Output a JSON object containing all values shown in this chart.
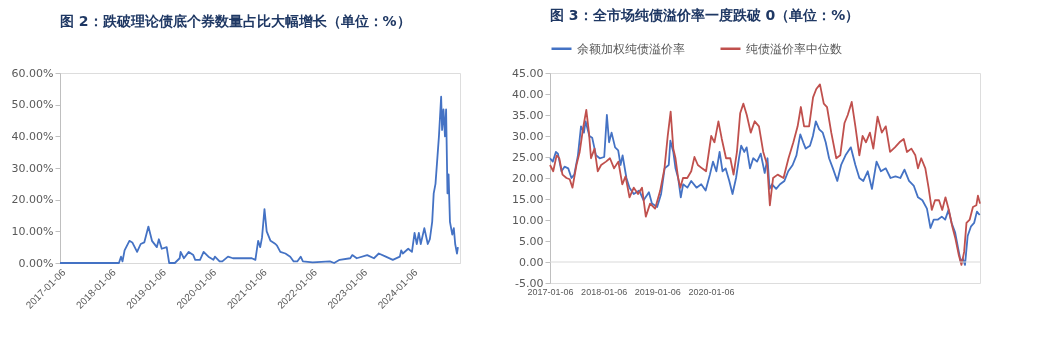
{
  "chart_data": [
    {
      "type": "line",
      "title": "图 2：跌破理论债底个券数量占比大幅增长（单位：%）",
      "xlim": [
        "2017-01-06",
        "2024-12-20"
      ],
      "xticks": [
        "2017-01-06",
        "2018-01-06",
        "2019-01-06",
        "2020-01-06",
        "2021-01-06",
        "2022-01-06",
        "2023-01-06",
        "2024-01-06"
      ],
      "ylim": [
        0,
        60
      ],
      "yticks": [
        {
          "value": 0,
          "label": "0.00%"
        },
        {
          "value": 10,
          "label": "10.00%"
        },
        {
          "value": 20,
          "label": "20.00%"
        },
        {
          "value": 30,
          "label": "30.00%"
        },
        {
          "value": 40,
          "label": "40.00%"
        },
        {
          "value": 50,
          "label": "50.00%"
        },
        {
          "value": 60,
          "label": "60.00%"
        }
      ],
      "grid": false,
      "legend": false,
      "series": [
        {
          "color": "#4472c4",
          "x": [
            "2017-01-06",
            "2018-03-10",
            "2018-03-25",
            "2018-04-05",
            "2018-04-20",
            "2018-05-25",
            "2018-06-15",
            "2018-07-20",
            "2018-08-15",
            "2018-09-10",
            "2018-10-10",
            "2018-11-05",
            "2018-12-10",
            "2018-12-25",
            "2019-01-15",
            "2019-02-20",
            "2019-02-25",
            "2019-03-10",
            "2019-04-20",
            "2019-05-25",
            "2019-06-01",
            "2019-06-25",
            "2019-07-30",
            "2019-09-01",
            "2019-09-15",
            "2019-10-20",
            "2019-11-15",
            "2019-12-20",
            "2020-01-25",
            "2020-02-05",
            "2020-03-10",
            "2020-03-30",
            "2020-05-10",
            "2020-06-15",
            "2020-09-10",
            "2020-10-30",
            "2020-11-25",
            "2020-12-15",
            "2020-12-30",
            "2021-01-12",
            "2021-01-30",
            "2021-02-15",
            "2021-03-15",
            "2021-04-20",
            "2021-05-01",
            "2021-05-25",
            "2021-07-01",
            "2021-08-05",
            "2021-08-30",
            "2021-09-25",
            "2021-10-20",
            "2021-11-05",
            "2022-01-15",
            "2022-05-20",
            "2022-06-20",
            "2022-07-30",
            "2022-10-15",
            "2022-10-30",
            "2022-12-01",
            "2023-02-15",
            "2023-04-05",
            "2023-05-10",
            "2023-06-30",
            "2023-08-20",
            "2023-10-10",
            "2023-10-20",
            "2023-11-01",
            "2023-12-10",
            "2024-01-06",
            "2024-01-25",
            "2024-02-10",
            "2024-02-25",
            "2024-03-10",
            "2024-04-05",
            "2024-04-30",
            "2024-05-15",
            "2024-06-01",
            "2024-06-12",
            "2024-06-25",
            "2024-07-10",
            "2024-07-20",
            "2024-08-05",
            "2024-08-12",
            "2024-08-22",
            "2024-09-02",
            "2024-09-10",
            "2024-09-20",
            "2024-09-28",
            "2024-10-08",
            "2024-10-25",
            "2024-11-05",
            "2024-11-15",
            "2024-11-28",
            "2024-12-05"
          ],
          "values": [
            0,
            0,
            2,
            0.5,
            4,
            7,
            6.5,
            3.5,
            6,
            6.5,
            11.5,
            7,
            5,
            7.5,
            4.5,
            5,
            3.5,
            0,
            0,
            1.5,
            3.5,
            1.5,
            3.5,
            2.5,
            1,
            1,
            3.5,
            2,
            1,
            2,
            0.5,
            0.5,
            2,
            1.5,
            1.5,
            1.5,
            1,
            7,
            5,
            8,
            17,
            10,
            7,
            6,
            5.5,
            3.5,
            3,
            2,
            0.5,
            0.5,
            2,
            0.5,
            0.2,
            0.5,
            0,
            1,
            1.5,
            2.5,
            1.5,
            2.5,
            1.5,
            3,
            2,
            1,
            2,
            4,
            3,
            4.5,
            3.5,
            9.5,
            6,
            9.5,
            6,
            11,
            6,
            7.5,
            13,
            22,
            25,
            34,
            40,
            52.5,
            42,
            48.5,
            40,
            48.5,
            22,
            28,
            13,
            9,
            11,
            6,
            3,
            5
          ]
        }
      ]
    },
    {
      "type": "line",
      "title": "图 3：全市场纯债溢价率一度跌破 0（单位：%）",
      "xlim": [
        "2017-01-06",
        "2025-01-10"
      ],
      "xticks": [
        "2017-01-06",
        "2018-01-06",
        "2019-01-06",
        "2020-01-06"
      ],
      "ylim": [
        -5,
        45
      ],
      "yticks": [
        {
          "value": -5,
          "label": "-5.00"
        },
        {
          "value": 0,
          "label": "0.00"
        },
        {
          "value": 5,
          "label": "5.00"
        },
        {
          "value": 10,
          "label": "10.00"
        },
        {
          "value": 15,
          "label": "15.00"
        },
        {
          "value": 20,
          "label": "20.00"
        },
        {
          "value": 25,
          "label": "25.00"
        },
        {
          "value": 30,
          "label": "30.00"
        },
        {
          "value": 35,
          "label": "35.00"
        },
        {
          "value": 40,
          "label": "40.00"
        },
        {
          "value": 45,
          "label": "45.00"
        }
      ],
      "grid": false,
      "legend": "top",
      "ref_lines": [
        {
          "axis": "y",
          "value": 0,
          "color": "#d9d9d9"
        }
      ],
      "series": [
        {
          "name": "余额加权纯债溢价率",
          "color": "#4472c4",
          "x": [
            "2017-01-06",
            "2017-01-25",
            "2017-02-15",
            "2017-03-01",
            "2017-03-25",
            "2017-04-15",
            "2017-05-10",
            "2017-06-01",
            "2017-06-20",
            "2017-07-15",
            "2017-08-05",
            "2017-08-25",
            "2017-09-05",
            "2017-10-01",
            "2017-10-20",
            "2017-11-15",
            "2017-12-10",
            "2018-01-10",
            "2018-01-28",
            "2018-02-12",
            "2018-03-01",
            "2018-03-25",
            "2018-04-15",
            "2018-05-01",
            "2018-05-15",
            "2018-06-10",
            "2018-07-01",
            "2018-07-30",
            "2018-09-05",
            "2018-10-05",
            "2018-11-10",
            "2018-12-01",
            "2019-01-05",
            "2019-02-01",
            "2019-02-25",
            "2019-03-25",
            "2019-04-05",
            "2019-04-25",
            "2019-05-10",
            "2019-05-28",
            "2019-06-15",
            "2019-07-01",
            "2019-07-30",
            "2019-08-25",
            "2019-09-30",
            "2019-11-01",
            "2019-12-01",
            "2019-12-30",
            "2020-01-20",
            "2020-02-12",
            "2020-03-05",
            "2020-03-25",
            "2020-04-15",
            "2020-05-10",
            "2020-06-01",
            "2020-06-25",
            "2020-07-15",
            "2020-07-30",
            "2020-08-20",
            "2020-09-05",
            "2020-09-28",
            "2020-10-20",
            "2020-11-15",
            "2020-12-10",
            "2021-01-06",
            "2021-01-25",
            "2021-02-08",
            "2021-02-25",
            "2021-03-25",
            "2021-04-20",
            "2021-05-20",
            "2021-06-15",
            "2021-07-15",
            "2021-08-10",
            "2021-09-05",
            "2021-09-25",
            "2021-10-12",
            "2021-11-10",
            "2021-11-30",
            "2021-12-20",
            "2022-01-12",
            "2022-02-05",
            "2022-02-25",
            "2022-03-20",
            "2022-04-15",
            "2022-05-15",
            "2022-06-10",
            "2022-07-10",
            "2022-08-15",
            "2022-09-15",
            "2022-10-12",
            "2022-11-08",
            "2022-12-08",
            "2023-01-06",
            "2023-02-06",
            "2023-03-08",
            "2023-04-10",
            "2023-05-12",
            "2023-06-15",
            "2023-07-18",
            "2023-08-15",
            "2023-09-15",
            "2023-10-18",
            "2023-11-15",
            "2023-12-15",
            "2024-01-15",
            "2024-02-08",
            "2024-03-01",
            "2024-03-30",
            "2024-04-25",
            "2024-05-18",
            "2024-06-10",
            "2024-07-01",
            "2024-07-25",
            "2024-08-15",
            "2024-09-01",
            "2024-09-15",
            "2024-09-30",
            "2024-10-18",
            "2024-11-10",
            "2024-12-01",
            "2024-12-20",
            "2025-01-08"
          ],
          "values": [
            24.7,
            23.9,
            26.2,
            25.8,
            21.6,
            22.7,
            22.3,
            20,
            20.8,
            25.4,
            32.3,
            30.8,
            33.5,
            30,
            29.6,
            25.4,
            24.7,
            25,
            35,
            28.5,
            30.8,
            27.3,
            26.6,
            23.1,
            25.4,
            20,
            17.7,
            16.2,
            17,
            14.7,
            16.6,
            13.9,
            13.1,
            16.2,
            22.3,
            23.1,
            28.9,
            26.2,
            22.3,
            20,
            15.4,
            18.5,
            17.7,
            19.3,
            17.7,
            18.5,
            17,
            20.8,
            23.9,
            21.6,
            26.2,
            21.6,
            22.3,
            19.3,
            16.2,
            20,
            24.7,
            27.7,
            26.2,
            27.3,
            22.3,
            24.7,
            23.9,
            25.8,
            21.2,
            24.7,
            17.4,
            18.5,
            17.4,
            18.5,
            19.3,
            21.6,
            23.1,
            25.4,
            30.4,
            28.5,
            27,
            27.7,
            30,
            33.5,
            31.6,
            30.8,
            28.5,
            24.7,
            22.3,
            19.3,
            23.1,
            25.4,
            27.3,
            23.1,
            20,
            19.3,
            21.6,
            17.4,
            23.9,
            21.6,
            22.3,
            20,
            20.4,
            20,
            22,
            19.3,
            18.1,
            15.4,
            14.7,
            12.7,
            8.1,
            10.1,
            10.1,
            10.8,
            10.1,
            12.4,
            9.3,
            7,
            3.1,
            0.1,
            0.8,
            -0.7,
            6.2,
            8.5,
            9.3,
            12,
            11.2
          ]
        },
        {
          "name": "纯债溢价率中位数",
          "color": "#c0504d",
          "x": [
            "2017-01-06",
            "2017-01-28",
            "2017-02-20",
            "2017-03-10",
            "2017-04-01",
            "2017-04-28",
            "2017-05-20",
            "2017-06-08",
            "2017-07-05",
            "2017-07-27",
            "2017-08-18",
            "2017-09-10",
            "2017-09-28",
            "2017-10-12",
            "2017-11-05",
            "2017-11-27",
            "2017-12-20",
            "2018-01-22",
            "2018-02-18",
            "2018-03-18",
            "2018-04-16",
            "2018-05-13",
            "2018-06-04",
            "2018-07-01",
            "2018-07-30",
            "2018-08-28",
            "2018-09-24",
            "2018-10-20",
            "2018-11-18",
            "2018-12-22",
            "2019-01-26",
            "2019-02-24",
            "2019-03-18",
            "2019-04-07",
            "2019-04-25",
            "2019-05-10",
            "2019-05-28",
            "2019-06-12",
            "2019-06-30",
            "2019-07-29",
            "2019-08-25",
            "2019-09-16",
            "2019-10-09",
            "2019-11-07",
            "2019-12-04",
            "2020-01-08",
            "2020-01-30",
            "2020-02-26",
            "2020-03-20",
            "2020-04-18",
            "2020-05-17",
            "2020-06-08",
            "2020-07-01",
            "2020-07-23",
            "2020-08-14",
            "2020-09-06",
            "2020-10-03",
            "2020-10-30",
            "2020-11-28",
            "2020-12-27",
            "2021-01-23",
            "2021-02-10",
            "2021-03-04",
            "2021-04-04",
            "2021-05-14",
            "2021-06-17",
            "2021-07-20",
            "2021-08-18",
            "2021-09-09",
            "2021-10-01",
            "2021-11-04",
            "2021-12-01",
            "2021-12-23",
            "2022-01-17",
            "2022-02-12",
            "2022-03-06",
            "2022-04-04",
            "2022-05-08",
            "2022-06-04",
            "2022-07-03",
            "2022-07-25",
            "2022-08-21",
            "2022-09-15",
            "2022-10-12",
            "2022-11-03",
            "2022-11-26",
            "2022-12-23",
            "2023-01-15",
            "2023-02-13",
            "2023-03-14",
            "2023-04-10",
            "2023-05-09",
            "2023-06-11",
            "2023-07-12",
            "2023-08-10",
            "2023-09-01",
            "2023-10-01",
            "2023-10-28",
            "2023-11-15",
            "2023-12-07",
            "2024-01-04",
            "2024-01-26",
            "2024-02-17",
            "2024-03-10",
            "2024-04-06",
            "2024-04-28",
            "2024-05-20",
            "2024-06-12",
            "2024-07-05",
            "2024-07-27",
            "2024-08-19",
            "2024-09-06",
            "2024-09-24",
            "2024-10-10",
            "2024-11-01",
            "2024-11-23",
            "2024-12-16",
            "2024-12-27",
            "2025-01-10"
          ],
          "values": [
            23.1,
            21.6,
            25.4,
            24.7,
            20.8,
            20,
            19.7,
            17.7,
            23.1,
            26.2,
            31.6,
            36.2,
            30.8,
            24.7,
            27,
            21.6,
            23.1,
            23.9,
            24.7,
            22.3,
            23.9,
            18.5,
            20.4,
            15.4,
            17.7,
            16.2,
            17.7,
            10.8,
            13.9,
            12.7,
            17,
            22.3,
            30,
            35.8,
            27,
            24.7,
            20,
            17.7,
            20,
            20,
            21.6,
            25,
            23.1,
            22.3,
            21.6,
            30,
            28.5,
            33.5,
            29.3,
            24.7,
            24.7,
            20.8,
            26.2,
            35.4,
            37.7,
            35,
            30.8,
            33.5,
            32.3,
            26.2,
            23.1,
            13.5,
            20,
            20.8,
            20,
            24.7,
            28.5,
            32.3,
            36.9,
            32.3,
            32.3,
            39.2,
            41.2,
            42.3,
            37.7,
            36.9,
            30.8,
            24.7,
            25.4,
            33.1,
            35,
            38.1,
            32.3,
            25.4,
            30,
            28.5,
            30.8,
            27,
            34.6,
            30.8,
            32.3,
            26.2,
            27.3,
            28.5,
            29.3,
            26.2,
            27,
            25.4,
            22.3,
            24.7,
            22.3,
            17.7,
            12.4,
            14.7,
            14.7,
            12.4,
            15.4,
            12.4,
            8.5,
            5.5,
            1.6,
            -0.7,
            2.4,
            9.3,
            10.1,
            13.1,
            13.5,
            15.8,
            13.9
          ]
        }
      ]
    }
  ]
}
